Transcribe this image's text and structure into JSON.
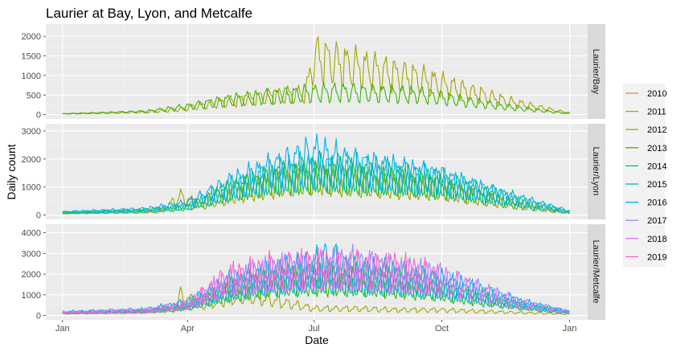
{
  "chart_data": {
    "type": "line",
    "title": "Laurier at Bay, Lyon, and Metcalfe",
    "xlabel": "Date",
    "ylabel": "Daily count",
    "x_ticks": [
      "Jan",
      "Apr",
      "Jul",
      "Oct",
      "Jan"
    ],
    "x_tick_days": [
      0,
      90,
      181,
      273,
      365
    ],
    "grid": true,
    "legend": {
      "placement": "right",
      "entries": [
        {
          "name": "2010",
          "color": "#F8766D"
        },
        {
          "name": "2011",
          "color": "#D89000"
        },
        {
          "name": "2012",
          "color": "#A3A500"
        },
        {
          "name": "2013",
          "color": "#39B600"
        },
        {
          "name": "2014",
          "color": "#00BF7D"
        },
        {
          "name": "2015",
          "color": "#00BFC4"
        },
        {
          "name": "2016",
          "color": "#00B0F6"
        },
        {
          "name": "2017",
          "color": "#9590FF"
        },
        {
          "name": "2018",
          "color": "#E76BF3"
        },
        {
          "name": "2019",
          "color": "#FF62BC"
        }
      ]
    },
    "panels": [
      {
        "label": "Laurier/Bay",
        "ylim": [
          0,
          2200
        ],
        "yticks": [
          0,
          500,
          1000,
          1500,
          2000
        ],
        "series": [
          {
            "name": "2012",
            "peaks": [
              [
                0,
                30
              ],
              [
                30,
                60
              ],
              [
                60,
                100
              ],
              [
                85,
                200
              ],
              [
                100,
                350
              ],
              [
                120,
                500
              ],
              [
                150,
                700
              ],
              [
                175,
                800
              ],
              [
                181,
                2150
              ],
              [
                200,
                1900
              ],
              [
                230,
                1600
              ],
              [
                260,
                1300
              ],
              [
                290,
                900
              ],
              [
                320,
                500
              ],
              [
                350,
                200
              ],
              [
                365,
                60
              ]
            ]
          },
          {
            "name": "2013",
            "peaks": [
              [
                0,
                30
              ],
              [
                30,
                70
              ],
              [
                60,
                120
              ],
              [
                90,
                300
              ],
              [
                120,
                550
              ],
              [
                150,
                700
              ],
              [
                175,
                800
              ],
              [
                200,
                850
              ],
              [
                230,
                800
              ],
              [
                260,
                750
              ],
              [
                290,
                500
              ],
              [
                320,
                300
              ],
              [
                350,
                120
              ],
              [
                365,
                40
              ]
            ]
          }
        ]
      },
      {
        "label": "Laurier/Lyon",
        "ylim": [
          0,
          3100
        ],
        "yticks": [
          0,
          1000,
          2000,
          3000
        ],
        "series": [
          {
            "name": "2012",
            "peaks": [
              [
                0,
                100
              ],
              [
                40,
                150
              ],
              [
                70,
                200
              ],
              [
                85,
                950
              ],
              [
                100,
                500
              ],
              [
                130,
                1200
              ],
              [
                160,
                1700
              ],
              [
                181,
                1900
              ],
              [
                210,
                1700
              ],
              [
                240,
                1500
              ],
              [
                270,
                1400
              ],
              [
                300,
                900
              ],
              [
                330,
                500
              ],
              [
                365,
                150
              ]
            ]
          },
          {
            "name": "2013",
            "peaks": [
              [
                0,
                100
              ],
              [
                60,
                200
              ],
              [
                90,
                400
              ],
              [
                120,
                1300
              ],
              [
                150,
                1800
              ],
              [
                181,
                2000
              ],
              [
                210,
                1900
              ],
              [
                240,
                1800
              ],
              [
                270,
                1500
              ],
              [
                300,
                1000
              ],
              [
                330,
                500
              ],
              [
                365,
                120
              ]
            ]
          },
          {
            "name": "2014",
            "peaks": [
              [
                0,
                120
              ],
              [
                60,
                250
              ],
              [
                90,
                450
              ],
              [
                120,
                1200
              ],
              [
                150,
                1900
              ],
              [
                181,
                2300
              ],
              [
                210,
                2100
              ],
              [
                240,
                1900
              ],
              [
                270,
                1700
              ],
              [
                300,
                1200
              ],
              [
                330,
                700
              ],
              [
                365,
                150
              ]
            ]
          },
          {
            "name": "2015",
            "peaks": [
              [
                0,
                150
              ],
              [
                60,
                250
              ],
              [
                90,
                500
              ],
              [
                120,
                1400
              ],
              [
                150,
                2100
              ],
              [
                181,
                2400
              ],
              [
                210,
                2300
              ],
              [
                240,
                2100
              ],
              [
                270,
                1800
              ],
              [
                300,
                1300
              ],
              [
                330,
                800
              ],
              [
                365,
                200
              ]
            ]
          },
          {
            "name": "2016",
            "peaks": [
              [
                0,
                150
              ],
              [
                60,
                300
              ],
              [
                90,
                600
              ],
              [
                120,
                1600
              ],
              [
                150,
                2300
              ],
              [
                181,
                3050
              ],
              [
                210,
                2500
              ],
              [
                240,
                2200
              ],
              [
                270,
                1900
              ],
              [
                300,
                1300
              ],
              [
                330,
                700
              ],
              [
                365,
                150
              ]
            ]
          }
        ]
      },
      {
        "label": "Laurier/Metcalfe",
        "ylim": [
          0,
          4200
        ],
        "yticks": [
          0,
          1000,
          2000,
          3000,
          4000
        ],
        "series": [
          {
            "name": "2012",
            "peaks": [
              [
                0,
                150
              ],
              [
                50,
                250
              ],
              [
                80,
                400
              ],
              [
                85,
                1500
              ],
              [
                100,
                700
              ],
              [
                130,
                1500
              ],
              [
                181,
                500
              ],
              [
                210,
                500
              ],
              [
                240,
                400
              ],
              [
                270,
                400
              ],
              [
                300,
                300
              ],
              [
                330,
                200
              ],
              [
                365,
                100
              ]
            ]
          },
          {
            "name": "2013",
            "peaks": [
              [
                0,
                200
              ],
              [
                60,
                300
              ],
              [
                90,
                600
              ],
              [
                120,
                1700
              ],
              [
                150,
                2300
              ],
              [
                181,
                2500
              ],
              [
                210,
                2400
              ],
              [
                240,
                2200
              ],
              [
                270,
                1800
              ],
              [
                300,
                1200
              ],
              [
                330,
                700
              ],
              [
                365,
                200
              ]
            ]
          },
          {
            "name": "2014",
            "peaks": [
              [
                0,
                200
              ],
              [
                60,
                300
              ],
              [
                90,
                700
              ],
              [
                120,
                1800
              ],
              [
                150,
                2500
              ],
              [
                181,
                2700
              ],
              [
                210,
                2600
              ],
              [
                240,
                2400
              ],
              [
                270,
                2000
              ],
              [
                300,
                1300
              ],
              [
                330,
                700
              ],
              [
                365,
                200
              ]
            ]
          },
          {
            "name": "2015",
            "peaks": [
              [
                0,
                200
              ],
              [
                60,
                350
              ],
              [
                90,
                800
              ],
              [
                120,
                2000
              ],
              [
                150,
                2700
              ],
              [
                181,
                2900
              ],
              [
                210,
                2800
              ],
              [
                240,
                2600
              ],
              [
                270,
                2200
              ],
              [
                300,
                1500
              ],
              [
                330,
                800
              ],
              [
                365,
                250
              ]
            ]
          },
          {
            "name": "2016",
            "peaks": [
              [
                0,
                250
              ],
              [
                60,
                400
              ],
              [
                90,
                900
              ],
              [
                120,
                2200
              ],
              [
                150,
                2900
              ],
              [
                181,
                3300
              ],
              [
                190,
                4000
              ],
              [
                210,
                3000
              ],
              [
                240,
                2800
              ],
              [
                270,
                2400
              ],
              [
                300,
                1700
              ],
              [
                330,
                900
              ],
              [
                365,
                250
              ]
            ]
          },
          {
            "name": "2017",
            "peaks": [
              [
                0,
                250
              ],
              [
                60,
                400
              ],
              [
                90,
                800
              ],
              [
                120,
                2300
              ],
              [
                150,
                3000
              ],
              [
                181,
                3200
              ],
              [
                210,
                3500
              ],
              [
                240,
                3000
              ],
              [
                270,
                2700
              ],
              [
                300,
                1800
              ],
              [
                330,
                900
              ],
              [
                365,
                250
              ]
            ]
          },
          {
            "name": "2018",
            "peaks": [
              [
                0,
                200
              ],
              [
                60,
                350
              ],
              [
                90,
                800
              ],
              [
                120,
                2600
              ],
              [
                150,
                3100
              ],
              [
                181,
                3300
              ],
              [
                210,
                3300
              ],
              [
                240,
                3000
              ],
              [
                270,
                2600
              ],
              [
                300,
                1700
              ],
              [
                330,
                800
              ],
              [
                365,
                200
              ]
            ]
          },
          {
            "name": "2019",
            "peaks": [
              [
                0,
                200
              ],
              [
                60,
                300
              ],
              [
                90,
                700
              ],
              [
                115,
                2500
              ],
              [
                150,
                3200
              ],
              [
                181,
                3400
              ],
              [
                210,
                3300
              ],
              [
                240,
                3200
              ],
              [
                270,
                2700
              ]
            ]
          }
        ]
      }
    ]
  }
}
